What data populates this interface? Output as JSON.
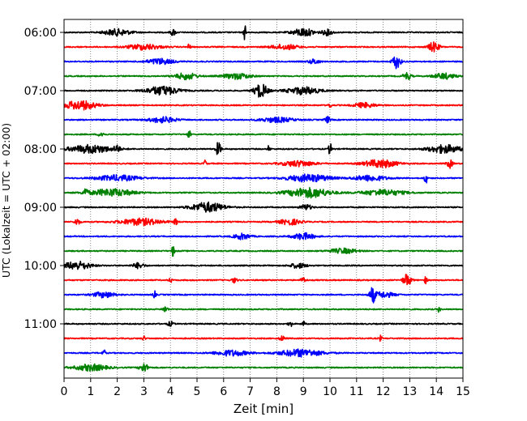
{
  "chart_data": {
    "type": "line",
    "title": "",
    "xlabel": "Zeit  [min]",
    "ylabel": "UTC (Lokalzeit = UTC + 02:00)",
    "xlim": [
      0,
      15
    ],
    "x_ticks": [
      0,
      1,
      2,
      3,
      4,
      5,
      6,
      7,
      8,
      9,
      10,
      11,
      12,
      13,
      14,
      15
    ],
    "x_tick_labels": [
      "0",
      "1",
      "2",
      "3",
      "4",
      "5",
      "6",
      "7",
      "8",
      "9",
      "10",
      "11",
      "12",
      "13",
      "14",
      "15"
    ],
    "y_tick_labels": [
      "06:00",
      "07:00",
      "08:00",
      "09:00",
      "10:00",
      "11:00"
    ],
    "grid": {
      "x": true,
      "y": false,
      "style": "dotted"
    },
    "trace_colors": [
      "#000000",
      "#ff0000",
      "#0000ff",
      "#008000"
    ],
    "traces_per_hour": 4,
    "minutes_per_trace": 15,
    "series": [
      {
        "start": "06:00",
        "color": "#000000",
        "events": [
          {
            "t": 2.0,
            "a": 0.4,
            "w": 0.5
          },
          {
            "t": 4.1,
            "a": 0.4,
            "w": 0.1
          },
          {
            "t": 6.8,
            "a": 1.0,
            "w": 0.05
          },
          {
            "t": 9.0,
            "a": 0.5,
            "w": 0.4
          },
          {
            "t": 9.9,
            "a": 0.35,
            "w": 0.2
          }
        ]
      },
      {
        "start": "06:15",
        "color": "#ff0000",
        "events": [
          {
            "t": 3.0,
            "a": 0.35,
            "w": 0.6
          },
          {
            "t": 4.7,
            "a": 0.45,
            "w": 0.05
          },
          {
            "t": 8.3,
            "a": 0.3,
            "w": 0.5
          },
          {
            "t": 13.9,
            "a": 0.6,
            "w": 0.2
          }
        ]
      },
      {
        "start": "06:30",
        "color": "#0000ff",
        "events": [
          {
            "t": 3.6,
            "a": 0.35,
            "w": 0.5
          },
          {
            "t": 9.4,
            "a": 0.3,
            "w": 0.2
          },
          {
            "t": 12.5,
            "a": 0.85,
            "w": 0.15
          }
        ]
      },
      {
        "start": "06:45",
        "color": "#008000",
        "events": [
          {
            "t": 4.6,
            "a": 0.4,
            "w": 0.4
          },
          {
            "t": 6.5,
            "a": 0.35,
            "w": 0.5
          },
          {
            "t": 12.9,
            "a": 0.45,
            "w": 0.15
          },
          {
            "t": 14.3,
            "a": 0.35,
            "w": 0.4
          }
        ]
      },
      {
        "start": "07:00",
        "color": "#000000",
        "events": [
          {
            "t": 3.7,
            "a": 0.55,
            "w": 0.6
          },
          {
            "t": 7.4,
            "a": 0.85,
            "w": 0.25
          },
          {
            "t": 9.0,
            "a": 0.45,
            "w": 0.6
          }
        ]
      },
      {
        "start": "07:15",
        "color": "#ff0000",
        "events": [
          {
            "t": 0.6,
            "a": 0.55,
            "w": 0.6
          },
          {
            "t": 10.0,
            "a": 0.4,
            "w": 0.05
          },
          {
            "t": 11.3,
            "a": 0.3,
            "w": 0.4
          }
        ]
      },
      {
        "start": "07:30",
        "color": "#0000ff",
        "events": [
          {
            "t": 3.7,
            "a": 0.35,
            "w": 0.5
          },
          {
            "t": 8.0,
            "a": 0.3,
            "w": 0.6
          },
          {
            "t": 9.9,
            "a": 0.4,
            "w": 0.1
          }
        ]
      },
      {
        "start": "07:45",
        "color": "#008000",
        "events": [
          {
            "t": 1.4,
            "a": 0.35,
            "w": 0.1
          },
          {
            "t": 4.7,
            "a": 0.6,
            "w": 0.05
          }
        ]
      },
      {
        "start": "08:00",
        "color": "#000000",
        "events": [
          {
            "t": 1.0,
            "a": 0.5,
            "w": 0.8
          },
          {
            "t": 2.0,
            "a": 0.45,
            "w": 0.1
          },
          {
            "t": 5.8,
            "a": 0.8,
            "w": 0.1
          },
          {
            "t": 7.7,
            "a": 0.4,
            "w": 0.05
          },
          {
            "t": 10.0,
            "a": 0.9,
            "w": 0.05
          },
          {
            "t": 14.3,
            "a": 0.5,
            "w": 0.6
          }
        ]
      },
      {
        "start": "08:15",
        "color": "#ff0000",
        "events": [
          {
            "t": 5.3,
            "a": 0.45,
            "w": 0.05
          },
          {
            "t": 8.8,
            "a": 0.35,
            "w": 0.6
          },
          {
            "t": 11.9,
            "a": 0.5,
            "w": 0.6
          },
          {
            "t": 14.5,
            "a": 0.55,
            "w": 0.1
          }
        ]
      },
      {
        "start": "08:30",
        "color": "#0000ff",
        "events": [
          {
            "t": 2.0,
            "a": 0.35,
            "w": 0.8
          },
          {
            "t": 9.2,
            "a": 0.45,
            "w": 0.8
          },
          {
            "t": 11.5,
            "a": 0.35,
            "w": 0.6
          },
          {
            "t": 13.6,
            "a": 0.8,
            "w": 0.05
          }
        ]
      },
      {
        "start": "08:45",
        "color": "#008000",
        "events": [
          {
            "t": 0.8,
            "a": 0.5,
            "w": 0.1
          },
          {
            "t": 1.8,
            "a": 0.45,
            "w": 0.8
          },
          {
            "t": 9.2,
            "a": 0.6,
            "w": 0.8
          },
          {
            "t": 12.0,
            "a": 0.35,
            "w": 0.8
          }
        ]
      },
      {
        "start": "09:00",
        "color": "#000000",
        "events": [
          {
            "t": 5.4,
            "a": 0.6,
            "w": 0.6
          },
          {
            "t": 9.1,
            "a": 0.35,
            "w": 0.2
          }
        ]
      },
      {
        "start": "09:15",
        "color": "#ff0000",
        "events": [
          {
            "t": 0.5,
            "a": 0.4,
            "w": 0.1
          },
          {
            "t": 2.9,
            "a": 0.4,
            "w": 0.8
          },
          {
            "t": 4.2,
            "a": 0.5,
            "w": 0.05
          },
          {
            "t": 8.5,
            "a": 0.35,
            "w": 0.4
          }
        ]
      },
      {
        "start": "09:30",
        "color": "#0000ff",
        "events": [
          {
            "t": 6.7,
            "a": 0.35,
            "w": 0.3
          },
          {
            "t": 9.0,
            "a": 0.4,
            "w": 0.4
          }
        ]
      },
      {
        "start": "09:45",
        "color": "#008000",
        "events": [
          {
            "t": 4.1,
            "a": 0.7,
            "w": 0.05
          },
          {
            "t": 10.5,
            "a": 0.3,
            "w": 0.5
          }
        ]
      },
      {
        "start": "10:00",
        "color": "#000000",
        "events": [
          {
            "t": 0.5,
            "a": 0.5,
            "w": 0.5
          },
          {
            "t": 2.8,
            "a": 0.35,
            "w": 0.2
          },
          {
            "t": 8.8,
            "a": 0.3,
            "w": 0.3
          }
        ]
      },
      {
        "start": "10:15",
        "color": "#ff0000",
        "events": [
          {
            "t": 4.0,
            "a": 0.35,
            "w": 0.05
          },
          {
            "t": 6.4,
            "a": 0.3,
            "w": 0.1
          },
          {
            "t": 9.0,
            "a": 0.3,
            "w": 0.1
          },
          {
            "t": 12.9,
            "a": 0.75,
            "w": 0.15
          },
          {
            "t": 13.6,
            "a": 0.45,
            "w": 0.05
          }
        ]
      },
      {
        "start": "10:30",
        "color": "#0000ff",
        "events": [
          {
            "t": 1.5,
            "a": 0.35,
            "w": 0.4
          },
          {
            "t": 3.4,
            "a": 0.45,
            "w": 0.05
          },
          {
            "t": 11.6,
            "a": 0.9,
            "w": 0.1
          },
          {
            "t": 12.0,
            "a": 0.35,
            "w": 0.4
          }
        ]
      },
      {
        "start": "10:45",
        "color": "#008000",
        "events": [
          {
            "t": 3.8,
            "a": 0.35,
            "w": 0.1
          },
          {
            "t": 14.1,
            "a": 0.35,
            "w": 0.05
          }
        ]
      },
      {
        "start": "11:00",
        "color": "#000000",
        "events": [
          {
            "t": 4.0,
            "a": 0.3,
            "w": 0.1
          },
          {
            "t": 8.5,
            "a": 0.8,
            "w": 0.05
          },
          {
            "t": 9.0,
            "a": 0.35,
            "w": 0.05
          }
        ]
      },
      {
        "start": "11:15",
        "color": "#ff0000",
        "events": [
          {
            "t": 3.0,
            "a": 0.3,
            "w": 0.05
          },
          {
            "t": 8.2,
            "a": 0.3,
            "w": 0.1
          },
          {
            "t": 11.9,
            "a": 0.35,
            "w": 0.05
          }
        ]
      },
      {
        "start": "11:30",
        "color": "#0000ff",
        "events": [
          {
            "t": 1.5,
            "a": 0.45,
            "w": 0.05
          },
          {
            "t": 6.3,
            "a": 0.35,
            "w": 0.6
          },
          {
            "t": 8.9,
            "a": 0.45,
            "w": 0.8
          }
        ]
      },
      {
        "start": "11:45",
        "color": "#008000",
        "events": [
          {
            "t": 1.0,
            "a": 0.4,
            "w": 0.6
          },
          {
            "t": 3.0,
            "a": 0.55,
            "w": 0.15
          }
        ]
      }
    ]
  }
}
